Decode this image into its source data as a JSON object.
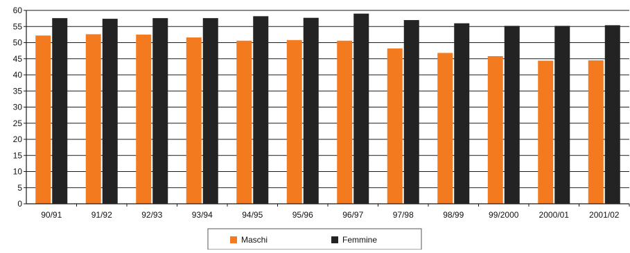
{
  "chart_data": {
    "type": "bar",
    "categories": [
      "90/91",
      "91/92",
      "92/93",
      "93/94",
      "94/95",
      "95/96",
      "96/97",
      "97/98",
      "98/99",
      "99/2000",
      "2000/01",
      "2001/02"
    ],
    "series": [
      {
        "name": "Maschi",
        "color": "#f47a1f",
        "values": [
          52.2,
          52.6,
          52.5,
          51.6,
          50.6,
          50.8,
          50.6,
          48.2,
          46.8,
          45.8,
          44.4,
          44.5
        ]
      },
      {
        "name": "Femmine",
        "color": "#232323",
        "values": [
          57.6,
          57.4,
          57.6,
          57.6,
          58.2,
          57.7,
          59.0,
          57.0,
          56.0,
          55.2,
          55.2,
          55.4
        ]
      }
    ],
    "ylim": [
      0,
      60
    ],
    "yticks": [
      0,
      5,
      10,
      15,
      20,
      25,
      30,
      35,
      40,
      45,
      50,
      55,
      60
    ],
    "grid": true,
    "legend_position": "bottom-center"
  }
}
